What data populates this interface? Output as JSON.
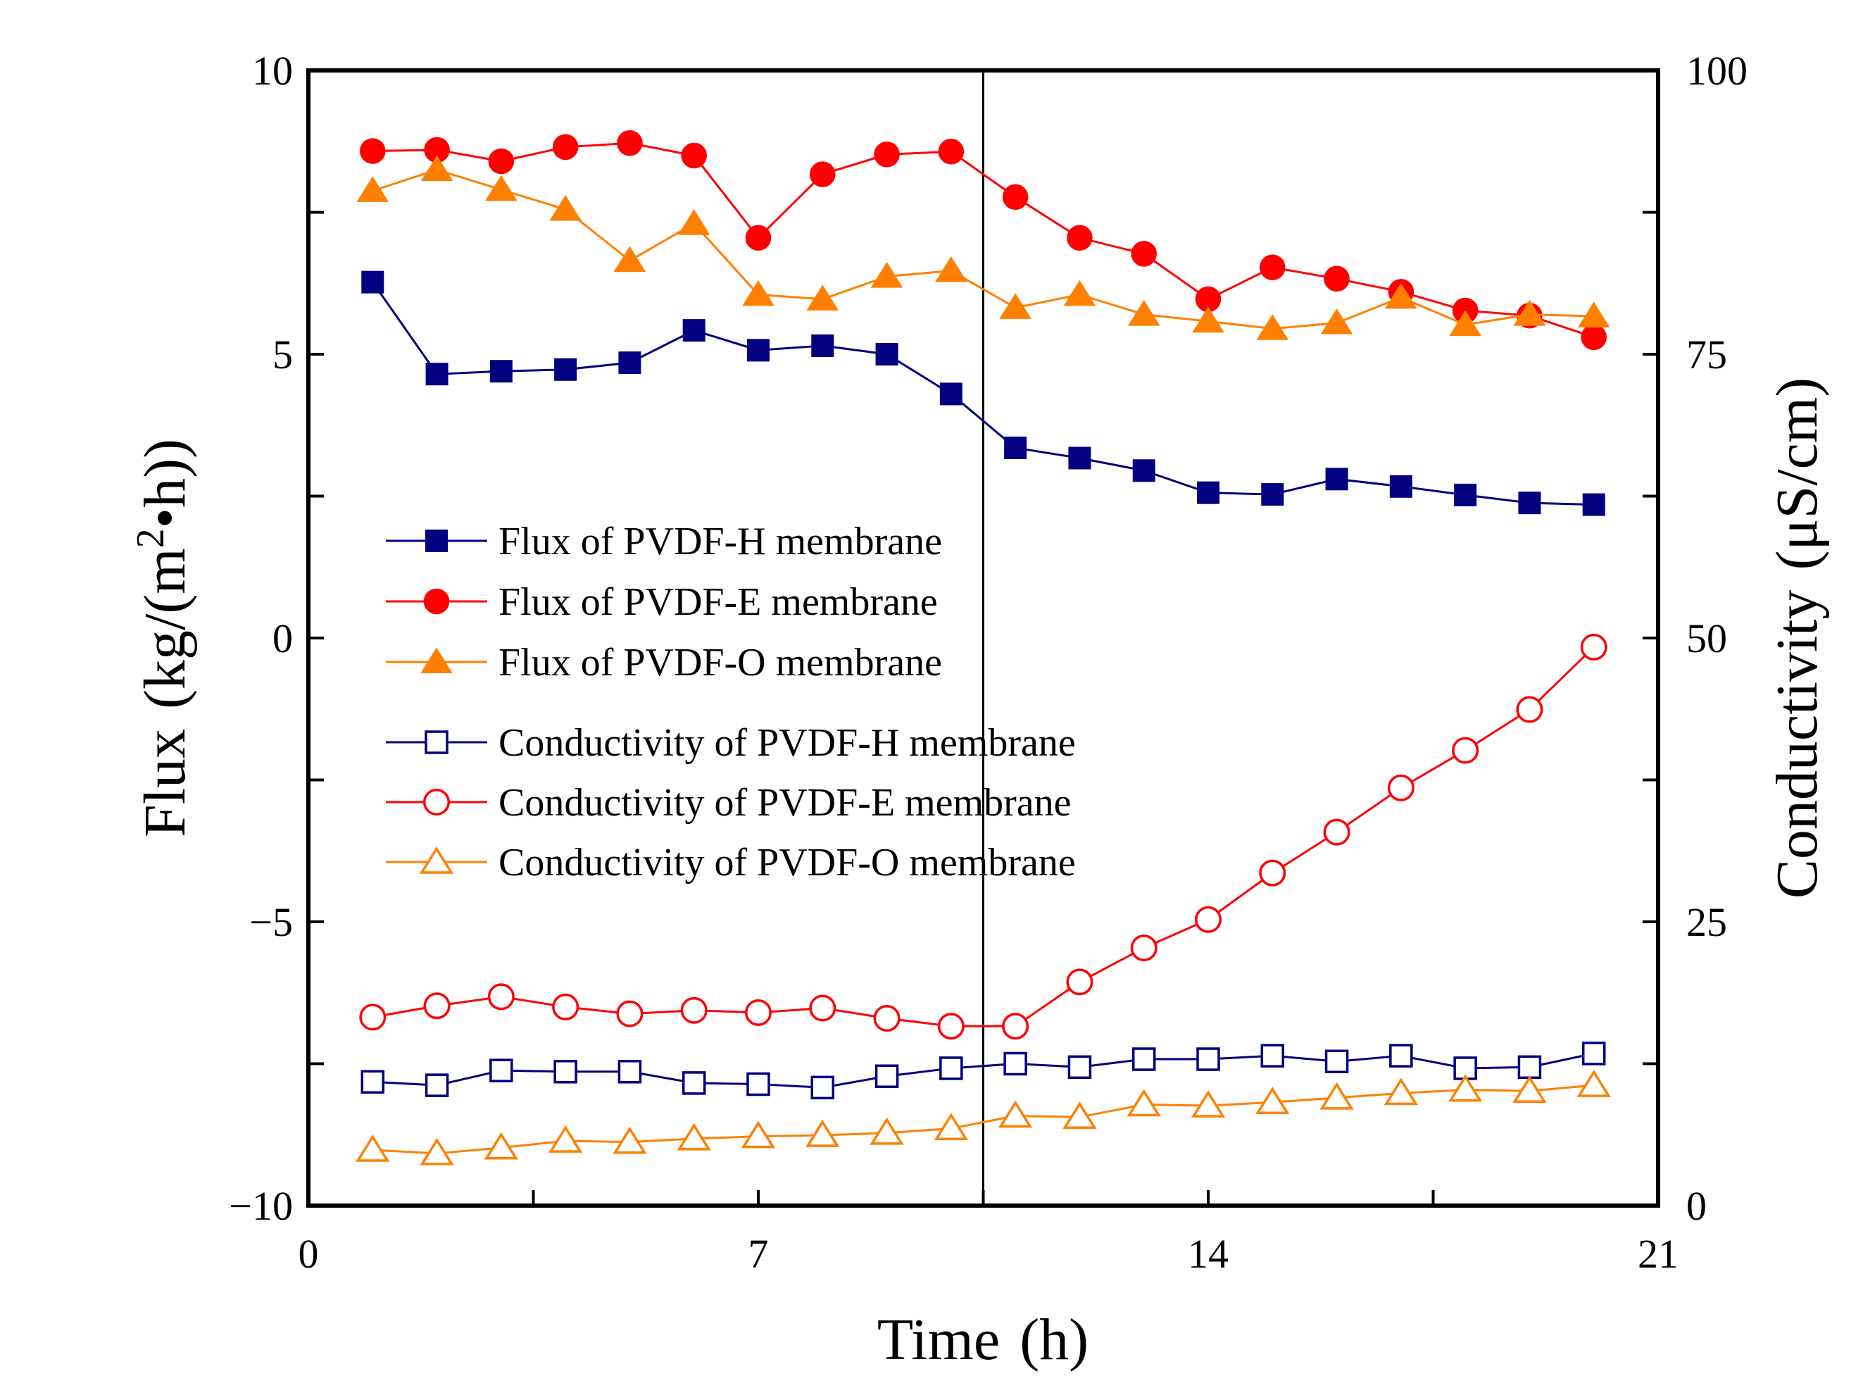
{
  "chart_data": {
    "type": "line",
    "x": [
      1,
      2,
      3,
      4,
      5,
      6,
      7,
      8,
      9,
      10,
      11,
      12,
      13,
      14,
      15,
      16,
      17,
      18,
      19,
      20
    ],
    "xlabel_main": "Time",
    "xlabel_unit": "(h)",
    "ylabel_main": "Flux",
    "ylabel_unit_prefix": "(kg/(m",
    "ylabel_unit_sup": "2",
    "ylabel_unit_suffix": "•h))",
    "y2label_main": "Conductivity",
    "y2label_unit": "(μS/cm)",
    "xlim": [
      0,
      21
    ],
    "ylim": [
      -10,
      10
    ],
    "y2lim": [
      0,
      100
    ],
    "x_ticks": [
      "0",
      "7",
      "14",
      "21"
    ],
    "x_tick_values": [
      0,
      7,
      14,
      21
    ],
    "y_ticks": [
      "−10",
      "−5",
      "0",
      "5",
      "10"
    ],
    "y_tick_values": [
      -10,
      -5,
      0,
      5,
      10
    ],
    "y2_ticks": [
      "0",
      "25",
      "50",
      "75",
      "100"
    ],
    "y2_tick_values": [
      0,
      25,
      50,
      75,
      100
    ],
    "vertical_line_x": 10.5,
    "legend_position": "left-center",
    "series": [
      {
        "name": "Flux of PVDF-H membrane",
        "axis": "left",
        "color": "#000080",
        "marker": "square",
        "filled": true,
        "values": [
          6.27,
          4.65,
          4.7,
          4.73,
          4.85,
          5.42,
          5.07,
          5.15,
          5.0,
          4.3,
          3.35,
          3.17,
          2.95,
          2.56,
          2.53,
          2.8,
          2.67,
          2.52,
          2.38,
          2.35
        ]
      },
      {
        "name": "Flux of PVDF-E membrane",
        "axis": "left",
        "color": "#ff0000",
        "marker": "circle",
        "filled": true,
        "values": [
          8.58,
          8.6,
          8.4,
          8.65,
          8.72,
          8.5,
          7.05,
          8.17,
          8.52,
          8.57,
          7.77,
          7.05,
          6.77,
          5.97,
          6.53,
          6.33,
          6.1,
          5.77,
          5.68,
          5.3
        ]
      },
      {
        "name": "Flux of PVDF-O membrane",
        "axis": "left",
        "color": "#ff8000",
        "marker": "triangle",
        "filled": true,
        "values": [
          7.88,
          8.25,
          7.9,
          7.55,
          6.65,
          7.3,
          6.05,
          5.97,
          6.37,
          6.47,
          5.82,
          6.05,
          5.7,
          5.58,
          5.45,
          5.55,
          6.0,
          5.52,
          5.7,
          5.67
        ]
      },
      {
        "name": "Conductivity of PVDF-H membrane",
        "axis": "right",
        "color": "#000080",
        "marker": "square",
        "filled": false,
        "values": [
          10.9,
          10.6,
          11.9,
          11.8,
          11.8,
          10.8,
          10.7,
          10.4,
          11.4,
          12.1,
          12.5,
          12.2,
          12.9,
          12.9,
          13.2,
          12.7,
          13.2,
          12.1,
          12.2,
          13.4
        ]
      },
      {
        "name": "Conductivity of PVDF-E membrane",
        "axis": "right",
        "color": "#ff0000",
        "marker": "circle",
        "filled": false,
        "values": [
          16.6,
          17.6,
          18.4,
          17.5,
          16.9,
          17.2,
          17.0,
          17.4,
          16.5,
          15.8,
          15.8,
          19.7,
          22.7,
          25.2,
          29.3,
          32.9,
          36.8,
          40.1,
          43.7,
          49.2
        ]
      },
      {
        "name": "Conductivity of PVDF-O membrane",
        "axis": "right",
        "color": "#ff8000",
        "marker": "triangle",
        "filled": false,
        "values": [
          4.9,
          4.6,
          5.1,
          5.7,
          5.6,
          5.9,
          6.1,
          6.2,
          6.4,
          6.8,
          7.9,
          7.8,
          8.9,
          8.8,
          9.1,
          9.5,
          9.9,
          10.2,
          10.1,
          10.6
        ]
      }
    ]
  }
}
